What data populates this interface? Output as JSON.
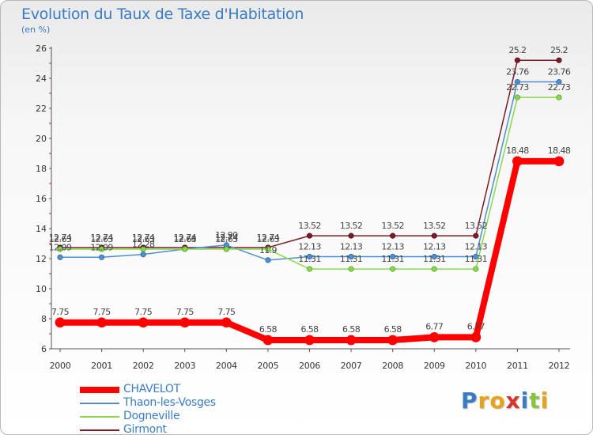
{
  "header": {
    "title": "Evolution du Taux de Taxe d'Habitation",
    "subtitle": "(en %)"
  },
  "logo_text": "Proxiti",
  "chart_data": {
    "type": "line",
    "title": "Evolution du Taux de Taxe d'Habitation",
    "ylabel": "(en %)",
    "xlabel": "",
    "x": [
      "2000",
      "2001",
      "2002",
      "2003",
      "2004",
      "2005",
      "2006",
      "2007",
      "2008",
      "2009",
      "2010",
      "2011",
      "2012"
    ],
    "ylim": [
      6,
      26
    ],
    "yticks": [
      6,
      8,
      10,
      12,
      14,
      16,
      18,
      20,
      22,
      24,
      26
    ],
    "grid": false,
    "legend_position": "bottom-left",
    "series": [
      {
        "name": "CHAVELOT",
        "color": "#ff0000",
        "values": [
          7.75,
          7.75,
          7.75,
          7.75,
          7.75,
          6.58,
          6.58,
          6.58,
          6.58,
          6.77,
          6.77,
          18.48,
          18.48
        ],
        "labels": [
          "7.75",
          "7.75",
          "7.75",
          "7.75",
          "7.75",
          "6.58",
          "6.58",
          "6.58",
          "6.58",
          "6.77",
          "6.77",
          "18.48",
          "18.48"
        ]
      },
      {
        "name": "Thaon-les-Vosges",
        "color": "#4f8fcf",
        "values": [
          12.09,
          12.09,
          12.28,
          12.64,
          12.9,
          11.9,
          12.13,
          12.13,
          12.13,
          12.13,
          12.13,
          23.76,
          23.76
        ],
        "labels": [
          "12.09",
          "12.09",
          "12.28",
          "12.64",
          "12.90",
          "11.9",
          "12.13",
          "12.13",
          "12.13",
          "12.13",
          "12.13",
          "23.76",
          "23.76"
        ]
      },
      {
        "name": "Dogneville",
        "color": "#88d84e",
        "values": [
          12.63,
          12.63,
          12.63,
          12.63,
          12.63,
          12.63,
          11.31,
          11.31,
          11.31,
          11.31,
          11.31,
          22.73,
          22.73
        ],
        "labels": [
          "12.63",
          "12.63",
          "12.63",
          "12.63",
          "12.63",
          "12.63",
          "11.31",
          "11.31",
          "11.31",
          "11.31",
          "11.31",
          "22.73",
          "22.73"
        ]
      },
      {
        "name": "Girmont",
        "color": "#7a1c25",
        "values": [
          12.74,
          12.74,
          12.74,
          12.74,
          12.74,
          12.74,
          13.52,
          13.52,
          13.52,
          13.52,
          13.52,
          25.2,
          25.2
        ],
        "labels": [
          "12.74",
          "12.74",
          "12.74",
          "12.74",
          "12.74",
          "12.74",
          "13.52",
          "13.52",
          "13.52",
          "13.52",
          "13.52",
          "25.2",
          "25.2"
        ]
      }
    ]
  }
}
